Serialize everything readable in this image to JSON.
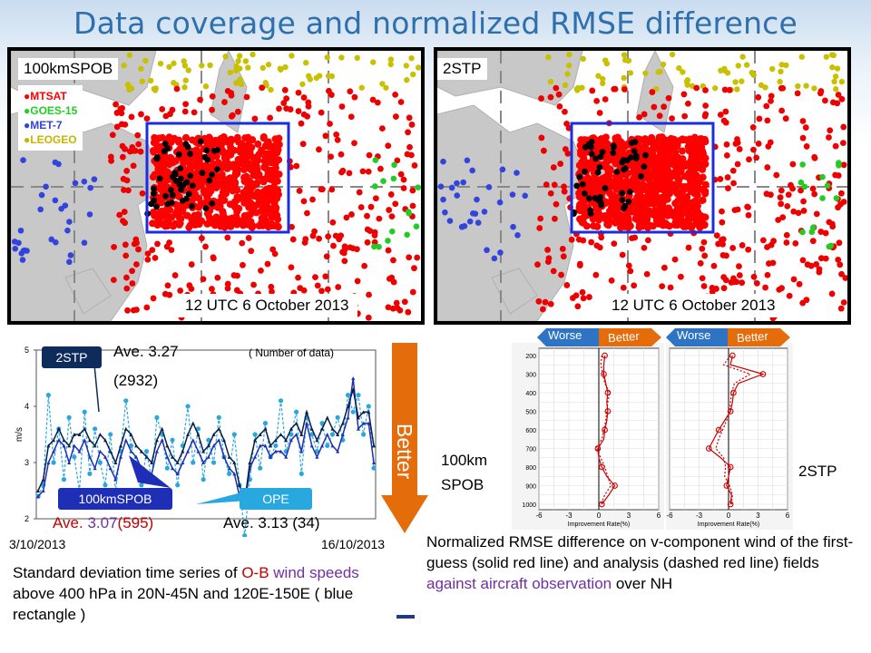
{
  "title": "Data coverage and normalized RMSE difference",
  "maps": {
    "left": {
      "label": "100kmSPOB",
      "date": "12 UTC 6 October 2013"
    },
    "right": {
      "label": "2STP",
      "date": "12 UTC 6 October 2013"
    },
    "legend": [
      {
        "name": "MTSAT",
        "color": "#ff0000"
      },
      {
        "name": "GOES-15",
        "color": "#22cc22"
      },
      {
        "name": "MET-7",
        "color": "#3344dd"
      },
      {
        "name": "LEOGEO",
        "color": "#c8b400"
      }
    ]
  },
  "timeseries": {
    "number_note": "( Number of data)",
    "badge_2stp": "2STP",
    "ave_2stp": "Ave. 3.27",
    "count_2stp": "(2932)",
    "badge_100km": "100kmSPOB",
    "badge_ope": "OPE",
    "ave_100km_prefix": "Ave. ",
    "ave_100km_value": "3.07",
    "ave_100km_count": "(595)",
    "ave_ope": "Ave. 3.13 (34)",
    "start_date": "3/10/2013",
    "end_date": "16/10/2013",
    "better_label": "Better"
  },
  "rmse": {
    "worse": "Worse",
    "better": "Better",
    "label_left": "100km\nSPOB",
    "label_right": "2STP"
  },
  "captions": {
    "left": {
      "p1": "Standard deviation time series of ",
      "p2": "O-B",
      "p3": " ",
      "p4": "wind speeds",
      "p5": " above 400 hPa in 20N-45N and 120E-150E ( blue rectangle )"
    },
    "right": {
      "p1": "Normalized RMSE difference on v-component wind of the first-guess (solid red line) and analysis (dashed red line) fields ",
      "p2": "against aircraft observation",
      "p3": " over NH"
    }
  },
  "chart_data": [
    {
      "type": "line",
      "ylabel": "m/s",
      "ylim": [
        2,
        5
      ],
      "yticks": [
        "2",
        "3",
        "4",
        "5"
      ],
      "x_start": "3/10/2013",
      "x_end": "16/10/2013",
      "series": [
        {
          "name": "2STP",
          "color": "#0a1f4a",
          "style": "solid",
          "values": [
            2.5,
            2.7,
            3.3,
            3.4,
            3.6,
            3.4,
            3.3,
            3.5,
            3.5,
            3.6,
            3.4,
            3.3,
            3.5,
            3.4,
            3.2,
            3.0,
            3.3,
            3.6,
            3.5,
            3.3,
            3.2,
            3.1,
            3.0,
            3.4,
            3.6,
            3.3,
            3.1,
            3.0,
            3.2,
            3.5,
            3.7,
            3.5,
            3.2,
            3.3,
            3.5,
            3.6,
            3.4,
            3.1,
            3.0,
            2.6,
            2.3,
            3.0,
            3.4,
            3.5,
            3.6,
            3.3,
            3.4,
            3.5,
            3.4,
            3.6,
            3.7,
            3.5,
            3.9,
            3.6,
            3.4,
            3.6,
            3.8,
            3.6,
            3.5,
            3.7,
            4.0,
            4.3,
            3.8,
            3.9,
            3.9,
            3.3
          ]
        },
        {
          "name": "100kmSPOB",
          "color": "#1f2fb5",
          "style": "solid",
          "values": [
            2.4,
            2.5,
            3.0,
            3.2,
            3.4,
            3.3,
            3.0,
            3.3,
            3.2,
            3.4,
            3.1,
            2.9,
            3.2,
            3.1,
            2.9,
            2.7,
            3.1,
            3.4,
            3.2,
            3.1,
            2.9,
            2.8,
            2.8,
            3.2,
            3.4,
            3.1,
            2.9,
            2.8,
            3.0,
            3.2,
            3.4,
            3.2,
            3.0,
            3.1,
            3.3,
            3.4,
            3.1,
            2.9,
            2.8,
            2.4,
            2.2,
            2.9,
            3.1,
            3.3,
            3.3,
            3.1,
            3.2,
            3.2,
            3.1,
            3.4,
            3.5,
            3.2,
            3.7,
            3.3,
            3.1,
            3.3,
            3.5,
            3.3,
            3.2,
            3.5,
            3.8,
            4.5,
            3.6,
            3.7,
            3.7,
            3.0
          ]
        },
        {
          "name": "OPE",
          "color": "#29a8e0",
          "style": "dashed",
          "values": [
            2.4,
            2.6,
            4.2,
            3.0,
            3.6,
            2.7,
            3.8,
            3.1,
            2.5,
            3.9,
            2.8,
            3.6,
            3.0,
            2.6,
            3.5,
            2.5,
            3.2,
            4.1,
            3.3,
            3.0,
            2.6,
            3.2,
            2.7,
            3.8,
            3.5,
            2.9,
            3.4,
            2.6,
            3.3,
            4.0,
            3.0,
            3.6,
            2.7,
            3.4,
            3.0,
            3.8,
            3.1,
            2.8,
            3.5,
            2.6,
            1.7,
            2.7,
            3.5,
            2.9,
            3.7,
            3.1,
            3.3,
            4.1,
            3.2,
            3.5,
            3.9,
            2.8,
            3.8,
            3.5,
            3.2,
            3.7,
            3.3,
            3.5,
            3.8,
            3.4,
            4.2,
            3.9,
            4.2,
            3.5,
            4.0,
            2.9
          ]
        }
      ]
    },
    {
      "type": "line",
      "title": "100km SPOB",
      "xlabel": "Improvement Rate(%)",
      "xticks": [
        "-6",
        "-3",
        "0",
        "3",
        "6"
      ],
      "xlim": [
        -6,
        6
      ],
      "yticks": [
        "200",
        "300",
        "400",
        "500",
        "600",
        "700",
        "800",
        "900",
        "1000"
      ],
      "levels": [
        200,
        250,
        300,
        350,
        400,
        450,
        500,
        550,
        600,
        650,
        700,
        750,
        800,
        850,
        900,
        950,
        1000
      ],
      "series": [
        {
          "name": "first-guess",
          "color": "#cc0000",
          "style": "solid",
          "values": [
            0.6,
            0.5,
            0.5,
            0.7,
            0.9,
            0.8,
            0.9,
            0.8,
            0.6,
            0.5,
            -0.1,
            0.0,
            0.3,
            0.8,
            1.6,
            1.0,
            0.3
          ]
        },
        {
          "name": "analysis",
          "color": "#cc0000",
          "style": "dashed",
          "values": [
            0.3,
            0.2,
            0.4,
            0.6,
            1.1,
            0.9,
            0.8,
            0.7,
            0.5,
            0.3,
            -0.3,
            0.2,
            0.6,
            0.9,
            1.2,
            0.6,
            0.2
          ]
        }
      ]
    },
    {
      "type": "line",
      "title": "2STP",
      "xlabel": "Improvement Rate(%)",
      "xticks": [
        "-6",
        "-3",
        "0",
        "3",
        "6"
      ],
      "xlim": [
        -6,
        6
      ],
      "yticks": [
        "200",
        "300",
        "400",
        "500",
        "600",
        "700",
        "800",
        "900",
        "1000"
      ],
      "levels": [
        200,
        250,
        300,
        350,
        400,
        450,
        500,
        550,
        600,
        650,
        700,
        750,
        800,
        850,
        900,
        950,
        1000
      ],
      "series": [
        {
          "name": "first-guess",
          "color": "#cc0000",
          "style": "solid",
          "values": [
            0.4,
            0.2,
            3.5,
            1.0,
            0.5,
            0.4,
            0.2,
            -0.4,
            -1.0,
            -1.5,
            -2.0,
            -0.8,
            0.2,
            0.0,
            -0.2,
            0.3,
            0.2
          ]
        },
        {
          "name": "analysis",
          "color": "#cc0000",
          "style": "dashed",
          "values": [
            0.2,
            -0.5,
            2.2,
            0.6,
            0.3,
            0.2,
            0.1,
            -0.2,
            -0.6,
            -1.0,
            -1.3,
            -0.5,
            -0.3,
            -0.4,
            0.1,
            0.4,
            0.3
          ]
        }
      ]
    }
  ]
}
